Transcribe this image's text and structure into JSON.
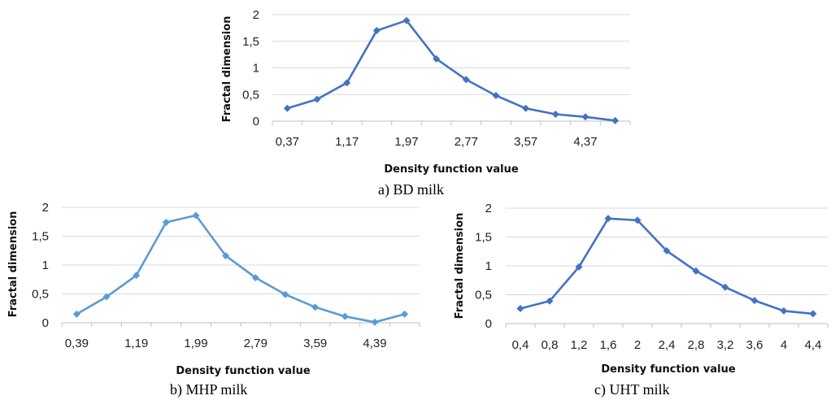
{
  "chart_data": [
    {
      "type": "line",
      "caption": "a) BD milk",
      "xlabel": "Density function value",
      "ylabel": "Fractal dimension",
      "yticks": [
        "0",
        "0,5",
        "1",
        "1,5",
        "2"
      ],
      "ylim": [
        0,
        2
      ],
      "xticklabels": [
        "0,37",
        "",
        "1,17",
        "",
        "1,97",
        "",
        "2,77",
        "",
        "3,57",
        "",
        "4,37",
        ""
      ],
      "grid": true,
      "color": "#4472C4",
      "series": [
        {
          "values": [
            0.24,
            0.41,
            0.72,
            1.7,
            1.89,
            1.17,
            0.78,
            0.48,
            0.24,
            0.13,
            0.08,
            0.01
          ]
        }
      ]
    },
    {
      "type": "line",
      "caption": "b) MHP milk",
      "xlabel": "Density function value",
      "ylabel": "Fractal dimension",
      "yticks": [
        "0",
        "0,5",
        "1",
        "1,5",
        "2"
      ],
      "ylim": [
        0,
        2
      ],
      "xticklabels": [
        "0,39",
        "",
        "1,19",
        "",
        "1,99",
        "",
        "2,79",
        "",
        "3,59",
        "",
        "4,39",
        ""
      ],
      "grid": true,
      "color": "#5B9BD5",
      "series": [
        {
          "values": [
            0.15,
            0.45,
            0.82,
            1.74,
            1.86,
            1.16,
            0.78,
            0.49,
            0.27,
            0.11,
            0.01,
            0.15
          ]
        }
      ]
    },
    {
      "type": "line",
      "caption": "c) UHT milk",
      "xlabel": "Density function value",
      "ylabel": "Fractal dimension",
      "yticks": [
        "0",
        "0,5",
        "1",
        "1,5",
        "2"
      ],
      "ylim": [
        0,
        2
      ],
      "xticklabels": [
        "0,4",
        "0,8",
        "1,2",
        "1,6",
        "2",
        "2,4",
        "2,8",
        "3,2",
        "3,6",
        "4",
        "4,4"
      ],
      "grid": true,
      "color": "#4472C4",
      "series": [
        {
          "values": [
            0.26,
            0.39,
            0.98,
            1.82,
            1.79,
            1.26,
            0.91,
            0.63,
            0.4,
            0.22,
            0.17
          ]
        }
      ]
    }
  ]
}
